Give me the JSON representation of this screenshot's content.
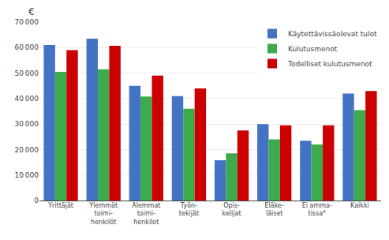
{
  "chart_data": {
    "type": "bar",
    "categories": [
      "Yrittäjät",
      "Ylemmät\ntoimi-\nhenkilöt",
      "Alemmat\ntoimi-\nhenkilot",
      "Työn-\ntekijät",
      "Opis-\nkelijat",
      "Eläke-\nläiset",
      "Ei amma-\ntissa*",
      "Kaikki"
    ],
    "series": [
      {
        "name": "Käytettävissäolevat tulot",
        "color": "#4472C4",
        "values": [
          61000,
          63500,
          45000,
          41000,
          15800,
          30000,
          23500,
          42000
        ]
      },
      {
        "name": "Kulutusmenot",
        "color": "#3DAA4C",
        "values": [
          50500,
          51500,
          40800,
          36000,
          18500,
          24000,
          22000,
          35500
        ]
      },
      {
        "name": "Todelliset kulutusmenot",
        "color": "#CC0000",
        "values": [
          59000,
          60700,
          49000,
          44000,
          27500,
          29500,
          29500,
          43000
        ]
      }
    ],
    "ylabel": "€",
    "ylim": [
      0,
      70000
    ],
    "yticks": [
      0,
      {
        "value": 10000,
        "label": "10 000"
      },
      {
        "value": 20000,
        "label": "20 000"
      },
      {
        "value": 30000,
        "label": "30 000"
      },
      {
        "value": 40000,
        "label": "40 000"
      },
      {
        "value": 50000,
        "label": "50 000"
      },
      {
        "value": 60000,
        "label": "60 000"
      },
      {
        "value": 70000,
        "label": "70 000"
      }
    ],
    "grid": true,
    "legend": "upper right"
  }
}
